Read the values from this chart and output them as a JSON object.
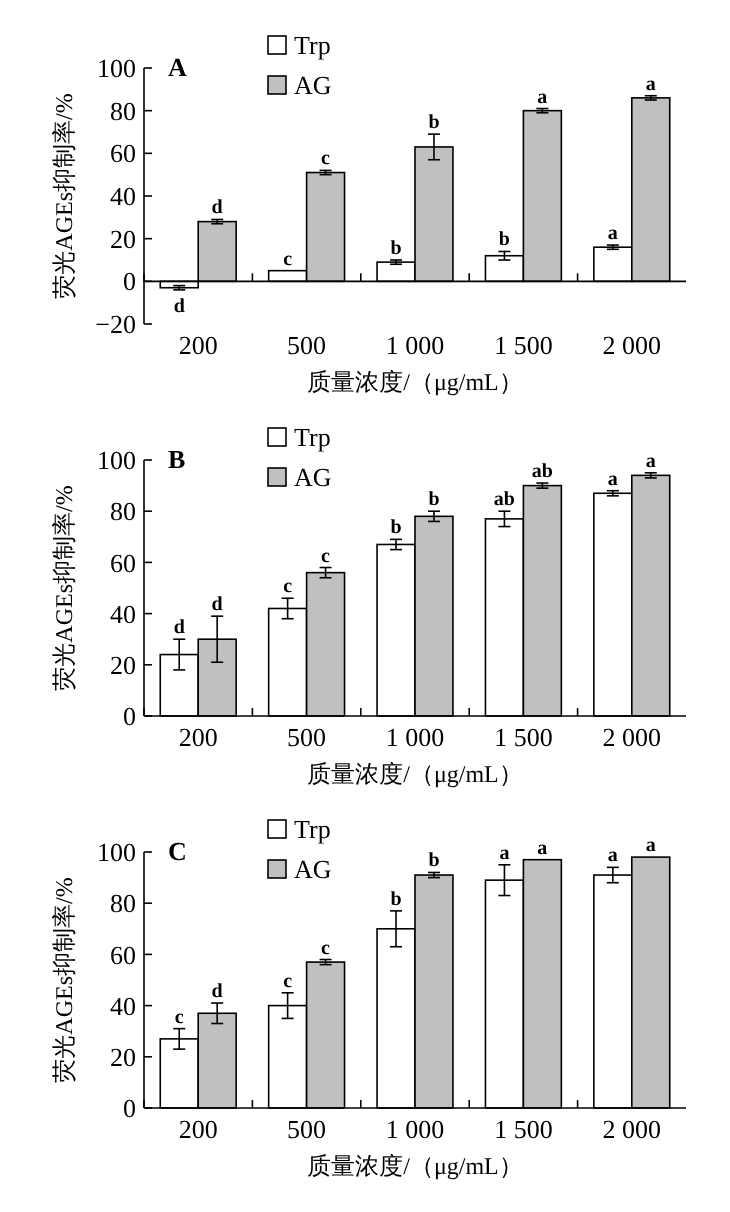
{
  "chart_data": [
    {
      "type": "bar",
      "title": "A",
      "xlabel": "质量浓度/（μg/mL）",
      "ylabel": "荧光AGEs抑制率/%",
      "categories": [
        "200",
        "500",
        "1 000",
        "1 500",
        "2 000"
      ],
      "ylim": [
        -20,
        100
      ],
      "yticks": [
        {
          "value": -20,
          "label": "−20"
        },
        0,
        20,
        40,
        60,
        80,
        100
      ],
      "legend": "top left",
      "grid": false,
      "series": [
        {
          "name": "Trp",
          "color": "#ffffff",
          "values": [
            -3,
            5,
            9,
            12,
            16
          ],
          "errors": [
            1,
            null,
            1,
            2,
            1
          ]
        },
        {
          "name": "AG",
          "color": "#c0c0c0",
          "values": [
            28,
            51,
            63,
            80,
            86
          ],
          "errors": [
            1,
            1,
            6,
            1,
            1
          ]
        }
      ],
      "annotations": [
        {
          "text": "d",
          "x": "200",
          "y": -3
        },
        {
          "text": "c",
          "x": "500",
          "y": 5
        },
        {
          "text": "b",
          "x": "1 000",
          "y": 9
        },
        {
          "text": "b",
          "x": "1 500",
          "y": 12
        },
        {
          "text": "a",
          "x": "2 000",
          "y": 16
        },
        {
          "text": "d",
          "x": "200",
          "y": 28
        },
        {
          "text": "c",
          "x": "500",
          "y": 51
        },
        {
          "text": "b",
          "x": "1 000",
          "y": 63
        },
        {
          "text": "a",
          "x": "1 500",
          "y": 80
        },
        {
          "text": "a",
          "x": "2 000",
          "y": 86
        }
      ]
    },
    {
      "type": "bar",
      "title": "B",
      "xlabel": "质量浓度/（μg/mL）",
      "ylabel": "荧光AGEs抑制率/%",
      "categories": [
        "200",
        "500",
        "1 000",
        "1 500",
        "2 000"
      ],
      "ylim": [
        0,
        100
      ],
      "yticks": [
        0,
        20,
        40,
        60,
        80,
        100
      ],
      "legend": "top left",
      "grid": false,
      "series": [
        {
          "name": "Trp",
          "color": "#ffffff",
          "values": [
            24,
            42,
            67,
            77,
            87
          ],
          "errors": [
            6,
            4,
            2,
            3,
            1
          ]
        },
        {
          "name": "AG",
          "color": "#c0c0c0",
          "values": [
            30,
            56,
            78,
            90,
            94
          ],
          "errors": [
            9,
            2,
            2,
            1,
            1
          ]
        }
      ],
      "annotations": [
        {
          "text": "d",
          "x": "200",
          "y": 24
        },
        {
          "text": "c",
          "x": "500",
          "y": 42
        },
        {
          "text": "b",
          "x": "1 000",
          "y": 67
        },
        {
          "text": "ab",
          "x": "1 500",
          "y": 77
        },
        {
          "text": "a",
          "x": "2 000",
          "y": 87
        },
        {
          "text": "d",
          "x": "200",
          "y": 30
        },
        {
          "text": "c",
          "x": "500",
          "y": 56
        },
        {
          "text": "b",
          "x": "1 000",
          "y": 78
        },
        {
          "text": "ab",
          "x": "1 500",
          "y": 90
        },
        {
          "text": "a",
          "x": "2 000",
          "y": 94
        }
      ]
    },
    {
      "type": "bar",
      "title": "C",
      "xlabel": "质量浓度/（μg/mL）",
      "ylabel": "荧光AGEs抑制率/%",
      "categories": [
        "200",
        "500",
        "1 000",
        "1 500",
        "2 000"
      ],
      "ylim": [
        0,
        100
      ],
      "yticks": [
        0,
        20,
        40,
        60,
        80,
        100
      ],
      "legend": "top left",
      "grid": false,
      "series": [
        {
          "name": "Trp",
          "color": "#ffffff",
          "values": [
            27,
            40,
            70,
            89,
            91
          ],
          "errors": [
            4,
            5,
            7,
            6,
            3
          ]
        },
        {
          "name": "AG",
          "color": "#c0c0c0",
          "values": [
            37,
            57,
            91,
            97,
            98
          ],
          "errors": [
            4,
            1,
            1,
            null,
            null
          ]
        }
      ],
      "annotations": [
        {
          "text": "c",
          "x": "200",
          "y": 27
        },
        {
          "text": "c",
          "x": "500",
          "y": 40
        },
        {
          "text": "b",
          "x": "1 000",
          "y": 70
        },
        {
          "text": "a",
          "x": "1 500",
          "y": 89
        },
        {
          "text": "a",
          "x": "2 000",
          "y": 91
        },
        {
          "text": "d",
          "x": "200",
          "y": 37
        },
        {
          "text": "c",
          "x": "500",
          "y": 57
        },
        {
          "text": "b",
          "x": "1 000",
          "y": 91
        },
        {
          "text": "a",
          "x": "1 500",
          "y": 97
        },
        {
          "text": "a",
          "x": "2 000",
          "y": 98
        }
      ]
    }
  ]
}
